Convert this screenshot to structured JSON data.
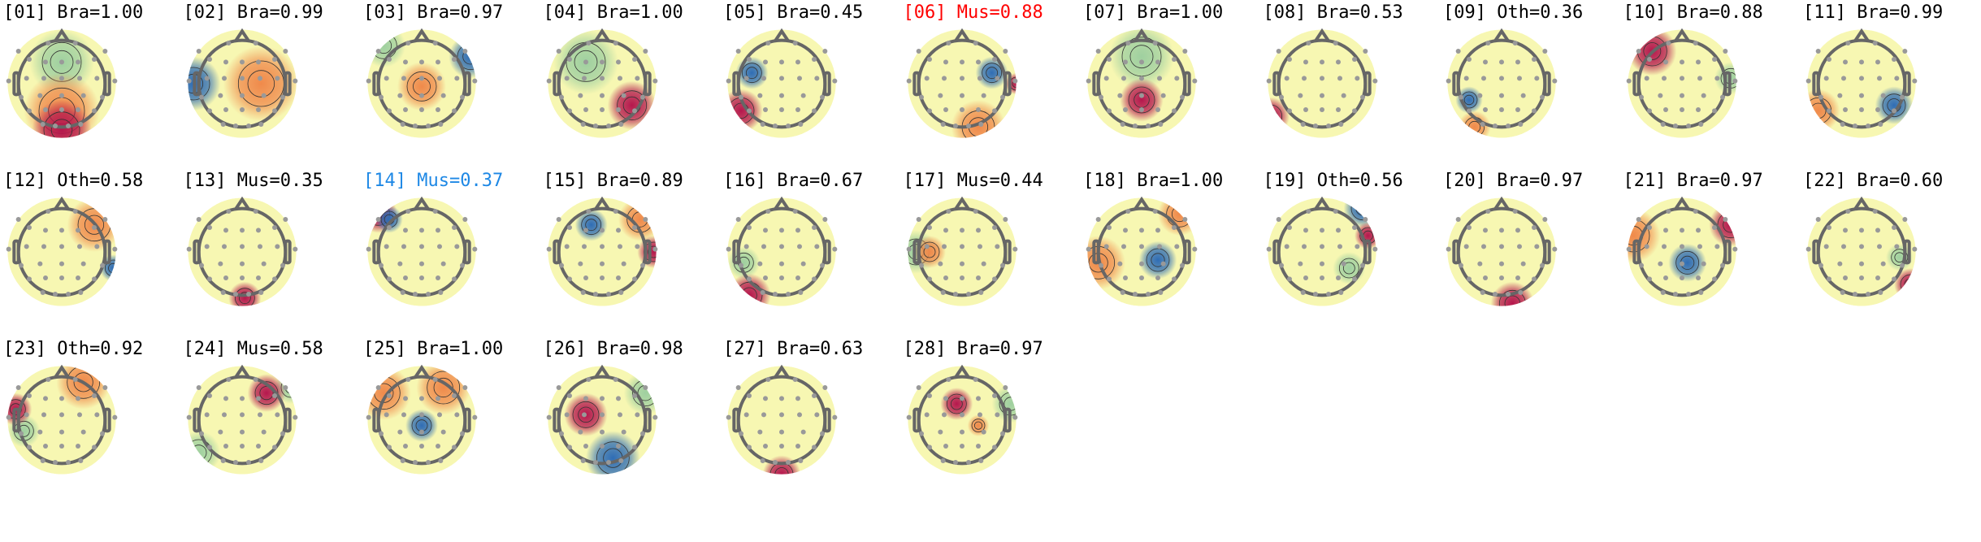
{
  "components": [
    {
      "index": "[01]",
      "label": "Bra=1.00",
      "color": "#000000"
    },
    {
      "index": "[02]",
      "label": "Bra=0.99",
      "color": "#000000"
    },
    {
      "index": "[03]",
      "label": "Bra=0.97",
      "color": "#000000"
    },
    {
      "index": "[04]",
      "label": "Bra=1.00",
      "color": "#000000"
    },
    {
      "index": "[05]",
      "label": "Bra=0.45",
      "color": "#000000"
    },
    {
      "index": "[06]",
      "label": "Mus=0.88",
      "color": "#ff0000"
    },
    {
      "index": "[07]",
      "label": "Bra=1.00",
      "color": "#000000"
    },
    {
      "index": "[08]",
      "label": "Bra=0.53",
      "color": "#000000"
    },
    {
      "index": "[09]",
      "label": "Oth=0.36",
      "color": "#000000"
    },
    {
      "index": "[10]",
      "label": "Bra=0.88",
      "color": "#000000"
    },
    {
      "index": "[11]",
      "label": "Bra=0.99",
      "color": "#000000"
    },
    {
      "index": "[12]",
      "label": "Oth=0.58",
      "color": "#000000"
    },
    {
      "index": "[13]",
      "label": "Mus=0.35",
      "color": "#000000"
    },
    {
      "index": "[14]",
      "label": "Mus=0.37",
      "color": "#1e88e5"
    },
    {
      "index": "[15]",
      "label": "Bra=0.89",
      "color": "#000000"
    },
    {
      "index": "[16]",
      "label": "Bra=0.67",
      "color": "#000000"
    },
    {
      "index": "[17]",
      "label": "Mus=0.44",
      "color": "#000000"
    },
    {
      "index": "[18]",
      "label": "Bra=1.00",
      "color": "#000000"
    },
    {
      "index": "[19]",
      "label": "Oth=0.56",
      "color": "#000000"
    },
    {
      "index": "[20]",
      "label": "Bra=0.97",
      "color": "#000000"
    },
    {
      "index": "[21]",
      "label": "Bra=0.97",
      "color": "#000000"
    },
    {
      "index": "[22]",
      "label": "Bra=0.60",
      "color": "#000000"
    },
    {
      "index": "[23]",
      "label": "Oth=0.92",
      "color": "#000000"
    },
    {
      "index": "[24]",
      "label": "Mus=0.58",
      "color": "#000000"
    },
    {
      "index": "[25]",
      "label": "Bra=1.00",
      "color": "#000000"
    },
    {
      "index": "[26]",
      "label": "Bra=0.98",
      "color": "#000000"
    },
    {
      "index": "[27]",
      "label": "Bra=0.63",
      "color": "#000000"
    },
    {
      "index": "[28]",
      "label": "Bra=0.97",
      "color": "#000000"
    }
  ],
  "colormap": {
    "negative": "#2f6db5",
    "neutral": "#f7f7b2",
    "positive": "#b5174d"
  }
}
